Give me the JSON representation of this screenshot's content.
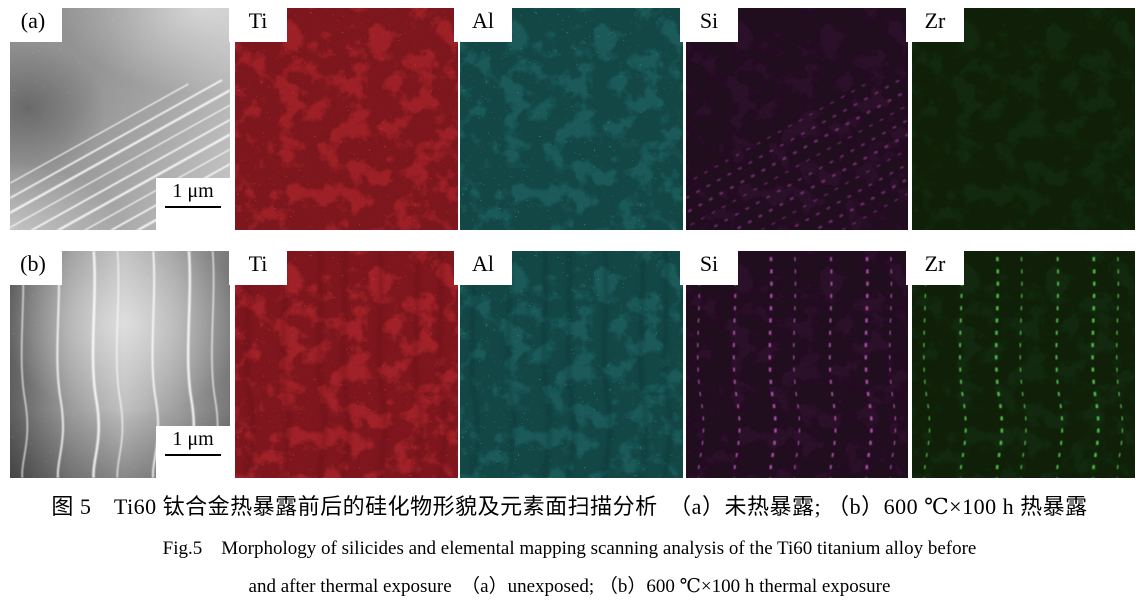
{
  "figure": {
    "rows": [
      {
        "id": "a",
        "tem": {
          "label": "(a)",
          "scale_bar": "1 μm",
          "streak_color": "#ffffff",
          "pattern": "diag"
        },
        "maps": [
          {
            "element": "Ti",
            "base_color": "#9e2027",
            "speckle_color": "#c4353d",
            "shadow_color": "#5f1015",
            "line_color": "",
            "pattern": "none"
          },
          {
            "element": "Al",
            "base_color": "#1b5a59",
            "speckle_color": "#2f8c89",
            "shadow_color": "#0a3534",
            "line_color": "",
            "pattern": "none"
          },
          {
            "element": "Si",
            "base_color": "#2a1028",
            "speckle_color": "#7c3178",
            "shadow_color": "#170717",
            "line_color": "#a545a0",
            "pattern": "diag-bead"
          },
          {
            "element": "Zr",
            "base_color": "#13290f",
            "speckle_color": "#3f9c3a",
            "shadow_color": "#091706",
            "line_color": "",
            "pattern": "none"
          }
        ]
      },
      {
        "id": "b",
        "tem": {
          "label": "(b)",
          "scale_bar": "1 μm",
          "streak_color": "#ffffff",
          "pattern": "vert"
        },
        "maps": [
          {
            "element": "Ti",
            "base_color": "#a02128",
            "speckle_color": "#c4353d",
            "shadow_color": "#5f1015",
            "line_color": "#570d12",
            "pattern": "vert-soft"
          },
          {
            "element": "Al",
            "base_color": "#1b5a59",
            "speckle_color": "#2f8c89",
            "shadow_color": "#0a3534",
            "line_color": "#072a29",
            "pattern": "vert-soft"
          },
          {
            "element": "Si",
            "base_color": "#2a1028",
            "speckle_color": "#7c3178",
            "shadow_color": "#170717",
            "line_color": "#b352ae",
            "pattern": "vert-bead"
          },
          {
            "element": "Zr",
            "base_color": "#13290f",
            "speckle_color": "#3f9c3a",
            "shadow_color": "#091706",
            "line_color": "#55c74f",
            "pattern": "vert-bead"
          }
        ]
      }
    ],
    "caption": {
      "zh": "图 5　Ti60 钛合金热暴露前后的硅化物形貌及元素面扫描分析　（a）未热暴露; （b）600 ℃×100 h 热暴露",
      "en_line1": "Fig.5　Morphology of silicides and elemental mapping scanning analysis of the Ti60 titanium alloy before",
      "en_line2": "and after thermal exposure　（a）unexposed; （b）600 ℃×100 h thermal exposure"
    }
  }
}
